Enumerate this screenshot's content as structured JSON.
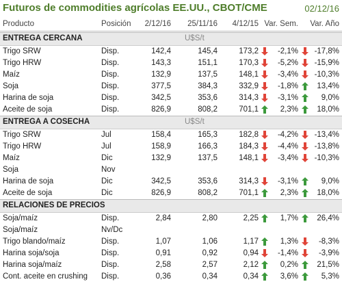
{
  "header": {
    "title": "Futuros de commodities agrícolas EE.UU., CBOT/CME",
    "date": "02/12/16"
  },
  "columns": [
    "Producto",
    "Posición",
    "2/12/16",
    "25/11/16",
    "4/12/15",
    "Var. Sem.",
    "Var. Año"
  ],
  "sections": [
    {
      "title": "ENTREGA CERCANA",
      "unit": "U$S/t",
      "rows": [
        {
          "cells": [
            "Trigo SRW",
            "Disp.",
            "142,4",
            "145,4",
            "173,2",
            "-2,1%",
            "-17,8%"
          ],
          "arrows": [
            "down",
            "down"
          ]
        },
        {
          "cells": [
            "Trigo HRW",
            "Disp.",
            "143,3",
            "151,1",
            "170,3",
            "-5,2%",
            "-15,9%"
          ],
          "arrows": [
            "down",
            "down"
          ]
        },
        {
          "cells": [
            "Maíz",
            "Disp.",
            "132,9",
            "137,5",
            "148,1",
            "-3,4%",
            "-10,3%"
          ],
          "arrows": [
            "down",
            "down"
          ]
        },
        {
          "cells": [
            "Soja",
            "Disp.",
            "377,5",
            "384,3",
            "332,9",
            "-1,8%",
            "13,4%"
          ],
          "arrows": [
            "down",
            "up"
          ]
        },
        {
          "cells": [
            "Harina de soja",
            "Disp.",
            "342,5",
            "353,6",
            "314,3",
            "-3,1%",
            "9,0%"
          ],
          "arrows": [
            "down",
            "up"
          ]
        },
        {
          "cells": [
            "Aceite de soja",
            "Disp.",
            "826,9",
            "808,2",
            "701,1",
            "2,3%",
            "18,0%"
          ],
          "arrows": [
            "up",
            "up"
          ]
        }
      ]
    },
    {
      "title": "ENTREGA A COSECHA",
      "unit": "U$S/t",
      "rows": [
        {
          "cells": [
            "Trigo SRW",
            "Jul",
            "158,4",
            "165,3",
            "182,8",
            "-4,2%",
            "-13,4%"
          ],
          "arrows": [
            "down",
            "down"
          ]
        },
        {
          "cells": [
            "Trigo HRW",
            "Jul",
            "158,9",
            "166,3",
            "184,3",
            "-4,4%",
            "-13,8%"
          ],
          "arrows": [
            "down",
            "down"
          ]
        },
        {
          "cells": [
            "Maíz",
            "Dic",
            "132,9",
            "137,5",
            "148,1",
            "-3,4%",
            "-10,3%"
          ],
          "arrows": [
            "down",
            "down"
          ]
        },
        {
          "cells": [
            "Soja",
            "Nov",
            null,
            null,
            null,
            null,
            null
          ],
          "arrows": [
            null,
            null
          ]
        },
        {
          "cells": [
            "Harina de soja",
            "Dic",
            "342,5",
            "353,6",
            "314,3",
            "-3,1%",
            "9,0%"
          ],
          "arrows": [
            "down",
            "up"
          ]
        },
        {
          "cells": [
            "Aceite de soja",
            "Dic",
            "826,9",
            "808,2",
            "701,1",
            "2,3%",
            "18,0%"
          ],
          "arrows": [
            "up",
            "up"
          ]
        }
      ]
    },
    {
      "title": "RELACIONES DE PRECIOS",
      "rows": [
        {
          "cells": [
            "Soja/maíz",
            "Disp.",
            "2,84",
            "2,80",
            "2,25",
            "1,7%",
            "26,4%"
          ],
          "arrows": [
            "up",
            "up"
          ]
        },
        {
          "cells": [
            "Soja/maíz",
            "Nv/Dc",
            null,
            null,
            null,
            null,
            null
          ],
          "arrows": [
            null,
            null
          ]
        },
        {
          "cells": [
            "Trigo blando/maíz",
            "Disp.",
            "1,07",
            "1,06",
            "1,17",
            "1,3%",
            "-8,3%"
          ],
          "arrows": [
            "up",
            "down"
          ]
        },
        {
          "cells": [
            "Harina soja/soja",
            "Disp.",
            "0,91",
            "0,92",
            "0,94",
            "-1,4%",
            "-3,9%"
          ],
          "arrows": [
            "down",
            "down"
          ]
        },
        {
          "cells": [
            "Harina soja/maíz",
            "Disp.",
            "2,58",
            "2,57",
            "2,12",
            "0,2%",
            "21,5%"
          ],
          "arrows": [
            "up",
            "up"
          ]
        },
        {
          "cells": [
            "Cont. aceite en crushing",
            "Disp.",
            "0,36",
            "0,34",
            "0,34",
            "3,6%",
            "5,3%"
          ],
          "arrows": [
            "up",
            "up"
          ]
        }
      ]
    }
  ]
}
